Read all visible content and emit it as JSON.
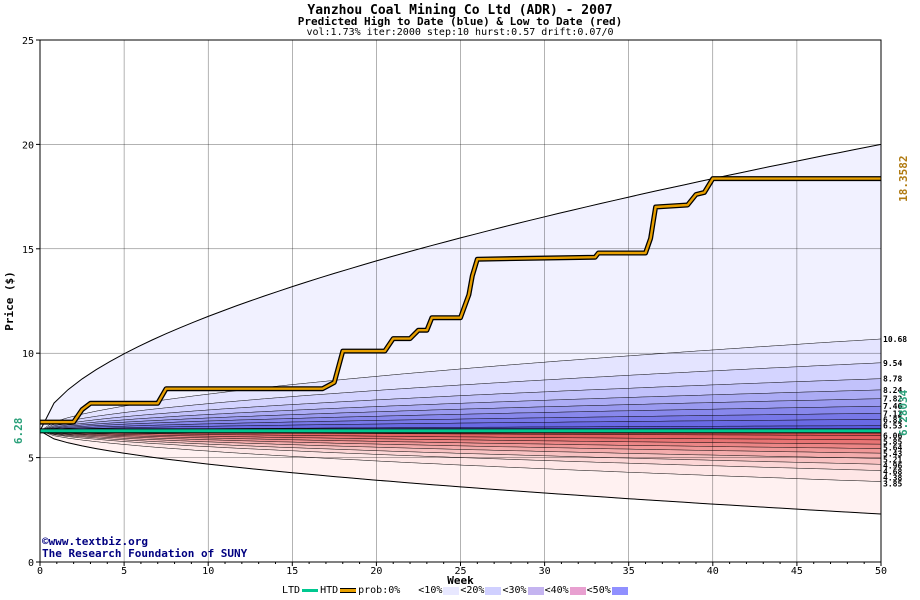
{
  "header": {
    "title": "Yanzhou Coal Mining Co Ltd (ADR) - 2007",
    "subtitle": "Predicted High to Date (blue) &  Low to Date (red)",
    "params": "vol:1.73% iter:2000 step:10 hurst:0.57 drift:0.07/0"
  },
  "credits": {
    "line1": "©www.textbiz.org",
    "line2": "The Research Foundation of SUNY"
  },
  "legend": {
    "ltd": "LTD",
    "htd": "HTD",
    "prob": "prob:0%",
    "items": [
      "<10%",
      "<20%",
      "<30%",
      "<40%",
      "<50%"
    ]
  },
  "colors": {
    "ltd": "#00c890",
    "htd": "#000000",
    "path": "#e8a000",
    "outer_band": "#f1f1ff",
    "red_outer": "#fff1f1",
    "grid": "#000000",
    "blue_label": "#2aa07a",
    "gold_label": "#b07a10"
  },
  "chart_data": {
    "type": "area",
    "title": "Yanzhou Coal Mining Co Ltd (ADR) - 2007",
    "xlabel": "Week",
    "ylabel": "Price ($)",
    "xlim": [
      0,
      50
    ],
    "ylim": [
      0,
      25
    ],
    "x_ticks": [
      0,
      5,
      10,
      15,
      20,
      25,
      30,
      35,
      40,
      45,
      50
    ],
    "y_ticks": [
      0,
      5,
      10,
      15,
      20,
      25
    ],
    "grid": true,
    "start_price": 6.28,
    "start_label": "6.28",
    "ltd_value": 6.28034,
    "ltd_label": "6.28034",
    "htd_value": 18.3582,
    "htd_label": "18.3582",
    "upper_levels": [
      10.68,
      9.54,
      8.78,
      8.24,
      7.82,
      7.46,
      7.12,
      6.83,
      6.53
    ],
    "upper_labels": [
      "10.68",
      "9.54",
      "8.78",
      "8.24",
      "7.82",
      "7.46",
      "7.12",
      "6.83",
      "6.53"
    ],
    "lower_levels": [
      6.06,
      5.85,
      5.64,
      5.43,
      5.21,
      4.96,
      4.68,
      4.38,
      3.85
    ],
    "lower_labels": [
      "6.06",
      "5.85",
      "5.64",
      "5.43",
      "5.21",
      "4.96",
      "4.68",
      "4.38",
      "3.85"
    ],
    "envelope_upper_end": 20.0,
    "envelope_lower_end": 2.3,
    "predicted_high_path": [
      [
        0,
        6.7
      ],
      [
        2,
        6.7
      ],
      [
        2.5,
        7.3
      ],
      [
        3,
        7.6
      ],
      [
        7,
        7.6
      ],
      [
        7.5,
        8.3
      ],
      [
        16.8,
        8.3
      ],
      [
        17.5,
        8.6
      ],
      [
        18,
        10.1
      ],
      [
        20.5,
        10.1
      ],
      [
        21,
        10.7
      ],
      [
        22,
        10.7
      ],
      [
        22.5,
        11.1
      ],
      [
        23,
        11.1
      ],
      [
        23.3,
        11.7
      ],
      [
        25,
        11.7
      ],
      [
        25.5,
        12.8
      ],
      [
        25.7,
        13.7
      ],
      [
        26,
        14.5
      ],
      [
        33,
        14.6
      ],
      [
        33.2,
        14.8
      ],
      [
        36,
        14.8
      ],
      [
        36.3,
        15.5
      ],
      [
        36.6,
        17.0
      ],
      [
        38.5,
        17.1
      ],
      [
        39,
        17.6
      ],
      [
        39.5,
        17.7
      ],
      [
        40,
        18.36
      ],
      [
        50,
        18.36
      ]
    ]
  }
}
